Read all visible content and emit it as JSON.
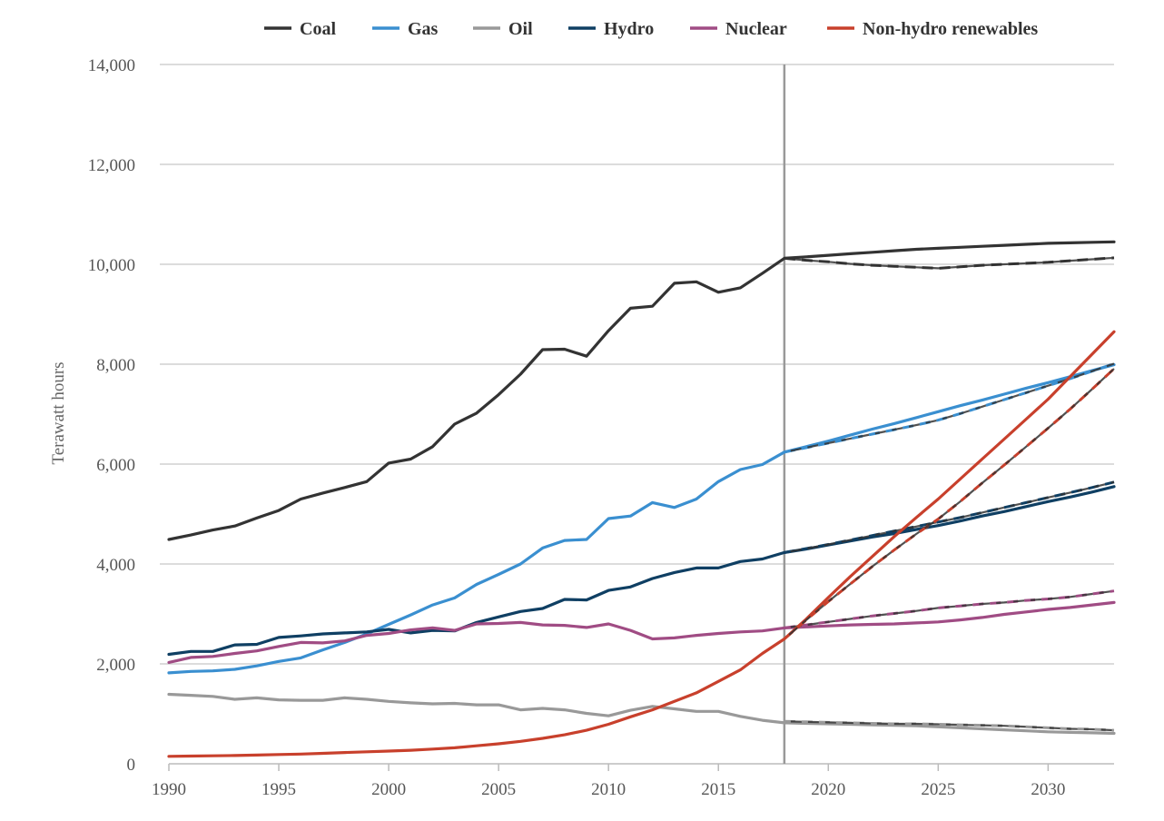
{
  "chart_data": {
    "type": "line",
    "title": "",
    "xlabel": "",
    "ylabel": "Terawatt hours",
    "xlim": [
      1990,
      2033
    ],
    "ylim": [
      0,
      14000
    ],
    "x_ticks": [
      1990,
      1995,
      2000,
      2005,
      2010,
      2015,
      2020,
      2025,
      2030
    ],
    "x_tick_labels": [
      "1990",
      "1995",
      "2000",
      "2005",
      "2010",
      "2015",
      "2020",
      "2025",
      "2030"
    ],
    "y_ticks": [
      0,
      2000,
      4000,
      6000,
      8000,
      10000,
      12000,
      14000
    ],
    "y_tick_labels": [
      "0",
      "2,000",
      "4,000",
      "6,000",
      "8,000",
      "10,000",
      "12,000",
      "14,000"
    ],
    "grid": "horizontal",
    "legend_position": "top",
    "divider_year": 2018,
    "series": [
      {
        "name": "Coal",
        "color": "#333333",
        "x": [
          1990,
          1991,
          1992,
          1993,
          1994,
          1995,
          1996,
          1997,
          1998,
          1999,
          2000,
          2001,
          2002,
          2003,
          2004,
          2005,
          2006,
          2007,
          2008,
          2009,
          2010,
          2011,
          2012,
          2013,
          2014,
          2015,
          2016,
          2017,
          2018,
          2019,
          2020,
          2021,
          2022,
          2023,
          2024,
          2025,
          2026,
          2027,
          2028,
          2029,
          2030,
          2031,
          2032,
          2033
        ],
        "values": [
          4490,
          4580,
          4680,
          4760,
          4920,
          5070,
          5300,
          5420,
          5530,
          5650,
          6020,
          6100,
          6350,
          6800,
          7020,
          7390,
          7800,
          8290,
          8300,
          8160,
          8670,
          9120,
          9160,
          9620,
          9650,
          9440,
          9530,
          9820,
          10120,
          10150,
          10180,
          10210,
          10240,
          10270,
          10300,
          10320,
          10340,
          10360,
          10380,
          10400,
          10420,
          10430,
          10440,
          10450
        ],
        "scenario_x": [
          2018,
          2019,
          2020,
          2021,
          2022,
          2023,
          2024,
          2025,
          2026,
          2027,
          2028,
          2029,
          2030,
          2031,
          2032,
          2033
        ],
        "scenario_values": [
          10120,
          10080,
          10050,
          10010,
          9980,
          9960,
          9940,
          9920,
          9950,
          9980,
          10000,
          10020,
          10040,
          10070,
          10100,
          10130
        ]
      },
      {
        "name": "Gas",
        "color": "#3a8fd0",
        "x": [
          1990,
          1991,
          1992,
          1993,
          1994,
          1995,
          1996,
          1997,
          1998,
          1999,
          2000,
          2001,
          2002,
          2003,
          2004,
          2005,
          2006,
          2007,
          2008,
          2009,
          2010,
          2011,
          2012,
          2013,
          2014,
          2015,
          2016,
          2017,
          2018,
          2019,
          2020,
          2021,
          2022,
          2023,
          2024,
          2025,
          2026,
          2027,
          2028,
          2029,
          2030,
          2031,
          2032,
          2033
        ],
        "values": [
          1820,
          1850,
          1860,
          1890,
          1960,
          2050,
          2120,
          2280,
          2430,
          2600,
          2790,
          2980,
          3180,
          3320,
          3590,
          3790,
          4000,
          4320,
          4470,
          4490,
          4910,
          4960,
          5230,
          5130,
          5300,
          5650,
          5890,
          5990,
          6240,
          6350,
          6460,
          6580,
          6700,
          6810,
          6930,
          7050,
          7170,
          7280,
          7400,
          7520,
          7630,
          7750,
          7870,
          7990
        ],
        "scenario_x": [
          2018,
          2019,
          2020,
          2021,
          2022,
          2023,
          2024,
          2025,
          2026,
          2027,
          2028,
          2029,
          2030,
          2031,
          2032,
          2033
        ],
        "scenario_values": [
          6240,
          6330,
          6420,
          6510,
          6600,
          6690,
          6780,
          6880,
          7010,
          7150,
          7290,
          7430,
          7570,
          7710,
          7860,
          8010
        ]
      },
      {
        "name": "Oil",
        "color": "#999999",
        "x": [
          1990,
          1991,
          1992,
          1993,
          1994,
          1995,
          1996,
          1997,
          1998,
          1999,
          2000,
          2001,
          2002,
          2003,
          2004,
          2005,
          2006,
          2007,
          2008,
          2009,
          2010,
          2011,
          2012,
          2013,
          2014,
          2015,
          2016,
          2017,
          2018,
          2019,
          2020,
          2021,
          2022,
          2023,
          2024,
          2025,
          2026,
          2027,
          2028,
          2029,
          2030,
          2031,
          2032,
          2033
        ],
        "values": [
          1390,
          1370,
          1350,
          1290,
          1320,
          1280,
          1270,
          1270,
          1320,
          1290,
          1250,
          1220,
          1200,
          1210,
          1180,
          1180,
          1080,
          1110,
          1080,
          1010,
          960,
          1070,
          1150,
          1100,
          1050,
          1050,
          950,
          870,
          820,
          810,
          800,
          790,
          780,
          770,
          760,
          740,
          720,
          700,
          680,
          660,
          640,
          630,
          620,
          610
        ],
        "scenario_x": [
          2018,
          2019,
          2020,
          2021,
          2022,
          2023,
          2024,
          2025,
          2026,
          2027,
          2028,
          2029,
          2030,
          2031,
          2032,
          2033
        ],
        "scenario_values": [
          850,
          840,
          830,
          820,
          810,
          800,
          800,
          790,
          780,
          770,
          760,
          740,
          720,
          700,
          690,
          670
        ]
      },
      {
        "name": "Hydro",
        "color": "#0f3f63",
        "x": [
          1990,
          1991,
          1992,
          1993,
          1994,
          1995,
          1996,
          1997,
          1998,
          1999,
          2000,
          2001,
          2002,
          2003,
          2004,
          2005,
          2006,
          2007,
          2008,
          2009,
          2010,
          2011,
          2012,
          2013,
          2014,
          2015,
          2016,
          2017,
          2018,
          2019,
          2020,
          2021,
          2022,
          2023,
          2024,
          2025,
          2026,
          2027,
          2028,
          2029,
          2030,
          2031,
          2032,
          2033
        ],
        "values": [
          2190,
          2250,
          2250,
          2380,
          2390,
          2530,
          2560,
          2600,
          2620,
          2640,
          2690,
          2620,
          2670,
          2660,
          2830,
          2940,
          3050,
          3110,
          3290,
          3280,
          3470,
          3540,
          3710,
          3830,
          3920,
          3920,
          4050,
          4100,
          4230,
          4300,
          4380,
          4460,
          4540,
          4610,
          4690,
          4770,
          4860,
          4960,
          5050,
          5150,
          5250,
          5340,
          5440,
          5550
        ],
        "scenario_x": [
          2018,
          2019,
          2020,
          2021,
          2022,
          2023,
          2024,
          2025,
          2026,
          2027,
          2028,
          2029,
          2030,
          2031,
          2032,
          2033
        ],
        "scenario_values": [
          4230,
          4310,
          4390,
          4480,
          4570,
          4660,
          4750,
          4840,
          4930,
          5030,
          5130,
          5230,
          5330,
          5430,
          5530,
          5640
        ]
      },
      {
        "name": "Nuclear",
        "color": "#a04c84",
        "x": [
          1990,
          1991,
          1992,
          1993,
          1994,
          1995,
          1996,
          1997,
          1998,
          1999,
          2000,
          2001,
          2002,
          2003,
          2004,
          2005,
          2006,
          2007,
          2008,
          2009,
          2010,
          2011,
          2012,
          2013,
          2014,
          2015,
          2016,
          2017,
          2018,
          2019,
          2020,
          2021,
          2022,
          2023,
          2024,
          2025,
          2026,
          2027,
          2028,
          2029,
          2030,
          2031,
          2032,
          2033
        ],
        "values": [
          2030,
          2130,
          2150,
          2210,
          2260,
          2350,
          2430,
          2420,
          2460,
          2570,
          2610,
          2680,
          2720,
          2670,
          2800,
          2810,
          2830,
          2780,
          2770,
          2730,
          2800,
          2670,
          2500,
          2520,
          2570,
          2610,
          2640,
          2660,
          2720,
          2740,
          2760,
          2780,
          2790,
          2800,
          2820,
          2840,
          2880,
          2930,
          2990,
          3040,
          3090,
          3130,
          3180,
          3230
        ],
        "scenario_x": [
          2018,
          2019,
          2020,
          2021,
          2022,
          2023,
          2024,
          2025,
          2026,
          2027,
          2028,
          2029,
          2030,
          2031,
          2032,
          2033
        ],
        "scenario_values": [
          2720,
          2780,
          2840,
          2900,
          2960,
          3010,
          3060,
          3120,
          3160,
          3200,
          3230,
          3270,
          3300,
          3340,
          3400,
          3460
        ]
      },
      {
        "name": "Non-hydro renewables",
        "color": "#c8402c",
        "x": [
          1990,
          1991,
          1992,
          1993,
          1994,
          1995,
          1996,
          1997,
          1998,
          1999,
          2000,
          2001,
          2002,
          2003,
          2004,
          2005,
          2006,
          2007,
          2008,
          2009,
          2010,
          2011,
          2012,
          2013,
          2014,
          2015,
          2016,
          2017,
          2018,
          2019,
          2020,
          2021,
          2022,
          2023,
          2024,
          2025,
          2026,
          2027,
          2028,
          2029,
          2030,
          2031,
          2032,
          2033
        ],
        "values": [
          150,
          155,
          160,
          165,
          175,
          185,
          195,
          210,
          225,
          240,
          255,
          270,
          295,
          320,
          360,
          400,
          450,
          510,
          580,
          670,
          790,
          940,
          1080,
          1250,
          1420,
          1650,
          1880,
          2210,
          2500,
          2900,
          3330,
          3750,
          4150,
          4550,
          4930,
          5300,
          5700,
          6100,
          6500,
          6900,
          7300,
          7750,
          8200,
          8650
        ],
        "scenario_x": [
          2018,
          2019,
          2020,
          2021,
          2022,
          2023,
          2024,
          2025,
          2026,
          2027,
          2028,
          2029,
          2030,
          2031,
          2032,
          2033
        ],
        "scenario_values": [
          2500,
          2880,
          3250,
          3600,
          3950,
          4280,
          4600,
          4900,
          5250,
          5620,
          5980,
          6350,
          6720,
          7100,
          7500,
          7910
        ]
      }
    ]
  }
}
